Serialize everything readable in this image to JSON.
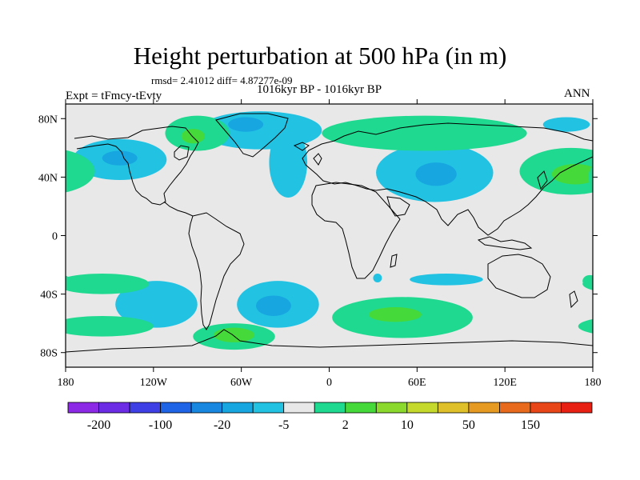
{
  "title": "Height perturbation at 500 hPa (in m)",
  "stats": "rmsd= 2.41012 diff= 4.87277e-09",
  "experiment": "Expt = tFmcy-tEvty",
  "period": "1016kyr BP - 1016kyr BP",
  "season": "ANN",
  "map": {
    "lat_ticks": [
      {
        "lat": 80,
        "label": "80N"
      },
      {
        "lat": 40,
        "label": "40N"
      },
      {
        "lat": 0,
        "label": "0"
      },
      {
        "lat": -40,
        "label": "40S"
      },
      {
        "lat": -80,
        "label": "80S"
      }
    ],
    "lon_ticks": [
      {
        "lon": -180,
        "label": "180"
      },
      {
        "lon": -120,
        "label": "120W"
      },
      {
        "lon": -60,
        "label": "60W"
      },
      {
        "lon": 0,
        "label": "0"
      },
      {
        "lon": 60,
        "label": "60E"
      },
      {
        "lon": 120,
        "label": "120E"
      },
      {
        "lon": 180,
        "label": "180"
      }
    ],
    "background_color": "#e8e8e8",
    "anomalies": [
      {
        "name": "north-pacific-low",
        "lon": -143,
        "lat": 52,
        "rlon": 32,
        "rlat": 14,
        "level": -1
      },
      {
        "name": "north-pacific-low-core",
        "lon": -143,
        "lat": 53,
        "rlon": 12,
        "rlat": 5,
        "level": -2
      },
      {
        "name": "greenland-low",
        "lon": -47,
        "lat": 72,
        "rlon": 42,
        "rlat": 13,
        "level": -1
      },
      {
        "name": "greenland-low-core",
        "lon": -57,
        "lat": 76,
        "rlon": 12,
        "rlat": 5,
        "level": -2
      },
      {
        "name": "north-atlantic-low",
        "lon": -28,
        "lat": 50,
        "rlon": 13,
        "rlat": 24,
        "level": -1
      },
      {
        "name": "central-asia-low",
        "lon": 72,
        "lat": 43,
        "rlon": 40,
        "rlat": 20,
        "level": -1
      },
      {
        "name": "central-asia-low-core",
        "lon": 73,
        "lat": 42,
        "rlon": 14,
        "rlat": 8,
        "level": -2
      },
      {
        "name": "northeast-pacific-low",
        "lon": 162,
        "lat": 76,
        "rlon": 16,
        "rlat": 5,
        "level": -1
      },
      {
        "name": "south-pacific-low",
        "lon": -118,
        "lat": -47,
        "rlon": 28,
        "rlat": 16,
        "level": -1
      },
      {
        "name": "south-atlantic-low",
        "lon": -35,
        "lat": -47,
        "rlon": 28,
        "rlat": 16,
        "level": -1
      },
      {
        "name": "south-atlantic-low-core",
        "lon": -38,
        "lat": -48,
        "rlon": 12,
        "rlat": 7,
        "level": -2
      },
      {
        "name": "indian-ocean-low",
        "lon": 80,
        "lat": -30,
        "rlon": 25,
        "rlat": 4,
        "level": -1
      },
      {
        "name": "madagascar-low",
        "lon": 33,
        "lat": -29,
        "rlon": 3,
        "rlat": 3,
        "level": -1
      },
      {
        "name": "north-america-high",
        "lon": -90,
        "lat": 70,
        "rlon": 22,
        "rlat": 12,
        "level": 1
      },
      {
        "name": "north-america-high-core",
        "lon": -93,
        "lat": 68,
        "rlon": 8,
        "rlat": 5,
        "level": 2
      },
      {
        "name": "eurasia-high",
        "lon": 65,
        "lat": 70,
        "rlon": 70,
        "rlat": 12,
        "level": 1
      },
      {
        "name": "north-pacific-high",
        "lon": 165,
        "lat": 44,
        "rlon": 35,
        "rlat": 16,
        "level": 1
      },
      {
        "name": "north-pacific-high-core",
        "lon": 168,
        "lat": 42,
        "rlon": 16,
        "rlat": 7,
        "level": 2
      },
      {
        "name": "dateline-west-high",
        "lon": -177,
        "lat": 40,
        "rlon": 6,
        "rlat": 9,
        "level": 1
      },
      {
        "name": "south-pacific-high",
        "lon": -155,
        "lat": -33,
        "rlon": 32,
        "rlat": 7,
        "level": 1
      },
      {
        "name": "southern-ocean-west-high",
        "lon": -155,
        "lat": -62,
        "rlon": 35,
        "rlat": 7,
        "level": 1
      },
      {
        "name": "drake-passage-high",
        "lon": -65,
        "lat": -69,
        "rlon": 28,
        "rlat": 9,
        "level": 1
      },
      {
        "name": "drake-passage-high-core",
        "lon": -65,
        "lat": -68,
        "rlon": 14,
        "rlat": 5,
        "level": 2
      },
      {
        "name": "southern-ocean-east-high",
        "lon": 50,
        "lat": -56,
        "rlon": 48,
        "rlat": 14,
        "level": 1
      },
      {
        "name": "southern-ocean-east-high-core",
        "lon": 45,
        "lat": -54,
        "rlon": 18,
        "rlat": 5,
        "level": 2
      },
      {
        "name": "south-pacific-east-high",
        "lon": 178,
        "lat": -31,
        "rlon": 5,
        "rlat": 4,
        "level": 1
      }
    ]
  },
  "colorbar": {
    "colors": [
      "#8c29e6",
      "#6c2ce6",
      "#3f3fe6",
      "#1f63e6",
      "#1787e0",
      "#17a6e0",
      "#22c2e3",
      "#e8e8e8",
      "#20d990",
      "#45d93a",
      "#8ad92c",
      "#c4d92c",
      "#e0c02a",
      "#e69a22",
      "#e86a1c",
      "#e84518",
      "#e82014"
    ],
    "labels": [
      {
        "index": 1,
        "text": "-200"
      },
      {
        "index": 3,
        "text": "-100"
      },
      {
        "index": 5,
        "text": "-20"
      },
      {
        "index": 7,
        "text": "-5"
      },
      {
        "index": 9,
        "text": "2"
      },
      {
        "index": 11,
        "text": "10"
      },
      {
        "index": 13,
        "text": "50"
      },
      {
        "index": 15,
        "text": "150"
      }
    ]
  }
}
